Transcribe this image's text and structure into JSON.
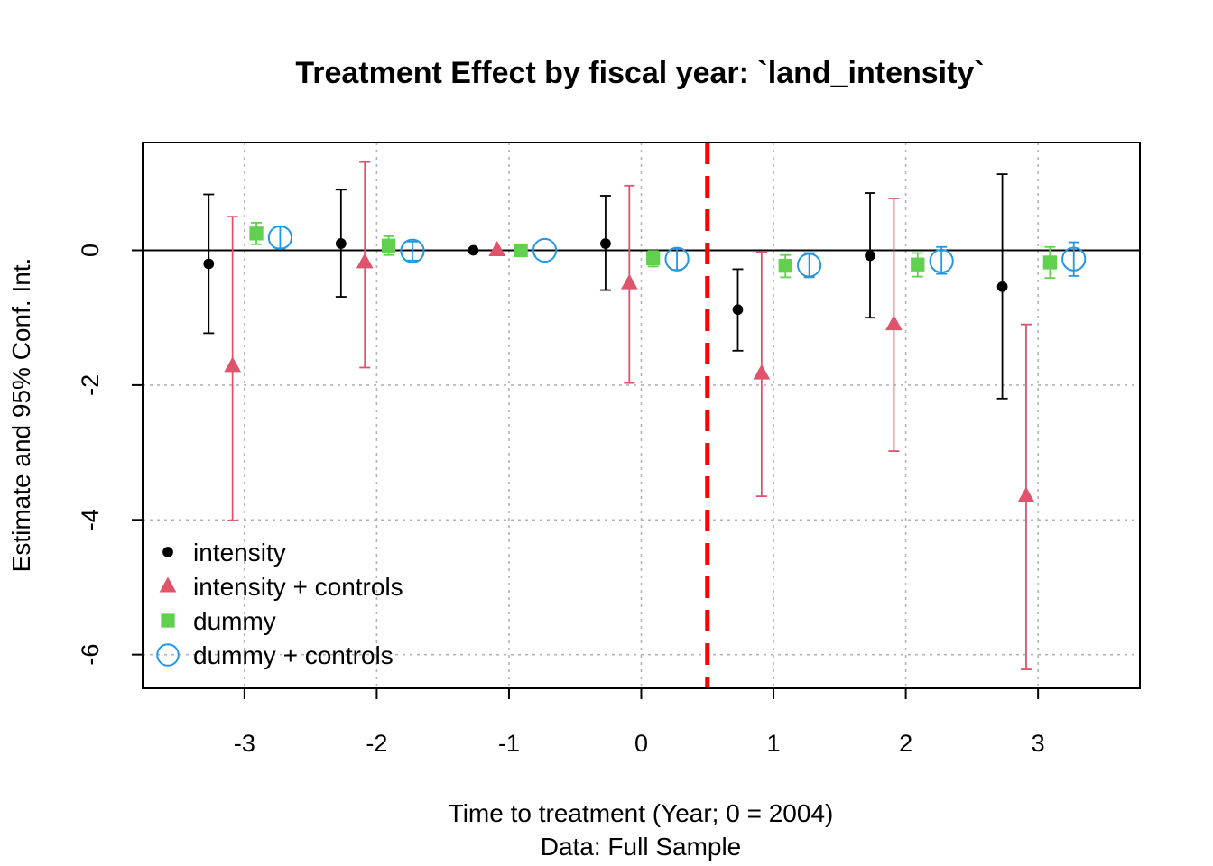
{
  "chart_data": {
    "type": "scatter",
    "title": "Treatment Effect by fiscal year: `land_intensity`",
    "xlabel": "Time to treatment (Year; 0 = 2004)",
    "subtitle": "Data: Full Sample",
    "ylabel": "Estimate and 95% Conf. Int.",
    "xlim": [
      -3.77,
      3.77
    ],
    "ylim": [
      -6.5,
      1.6
    ],
    "x_ticks": [
      -3,
      -2,
      -1,
      0,
      1,
      2,
      3
    ],
    "y_ticks": [
      0,
      -2,
      -4,
      -6
    ],
    "x_tick_labels": [
      "-3",
      "-2",
      "-1",
      "0",
      "1",
      "2",
      "3"
    ],
    "y_tick_labels": [
      "0",
      "-2",
      "-4",
      "-6"
    ],
    "grid": true,
    "reference_line_y": 0,
    "treatment_line_x": 0.5,
    "legend_position": "bottom-left",
    "series": [
      {
        "name": "intensity",
        "color": "#000000",
        "marker": "filled-circle",
        "offset": -0.27,
        "x": [
          -3,
          -2,
          -1,
          0,
          1,
          2,
          3
        ],
        "estimate": [
          -0.2,
          0.1,
          0.0,
          0.1,
          -0.88,
          -0.08,
          -0.54
        ],
        "ci_low": [
          -1.23,
          -0.69,
          null,
          -0.59,
          -1.49,
          -1.0,
          -2.2
        ],
        "ci_high": [
          0.83,
          0.9,
          null,
          0.81,
          -0.28,
          0.85,
          1.13
        ]
      },
      {
        "name": "intensity + controls",
        "color": "#DF536B",
        "marker": "filled-triangle",
        "offset": -0.09,
        "x": [
          -3,
          -2,
          -1,
          0,
          1,
          2,
          3
        ],
        "estimate": [
          -1.72,
          -0.18,
          0.0,
          -0.49,
          -1.83,
          -1.1,
          -3.65
        ],
        "ci_low": [
          -4.01,
          -1.74,
          null,
          -1.97,
          -3.65,
          -2.98,
          -6.22
        ],
        "ci_high": [
          0.5,
          1.31,
          null,
          0.96,
          -0.03,
          0.77,
          -1.1
        ]
      },
      {
        "name": "dummy",
        "color": "#61D04F",
        "marker": "filled-square",
        "offset": 0.09,
        "x": [
          -3,
          -2,
          -1,
          0,
          1,
          2,
          3
        ],
        "estimate": [
          0.25,
          0.07,
          0.0,
          -0.12,
          -0.23,
          -0.21,
          -0.18
        ],
        "ci_low": [
          0.09,
          -0.07,
          null,
          -0.24,
          -0.4,
          -0.39,
          -0.41
        ],
        "ci_high": [
          0.41,
          0.21,
          null,
          -0.01,
          -0.07,
          -0.04,
          0.05
        ]
      },
      {
        "name": "dummy + controls",
        "color": "#2297E6",
        "marker": "open-circle",
        "offset": 0.27,
        "x": [
          -3,
          -2,
          -1,
          0,
          1,
          2,
          3
        ],
        "estimate": [
          0.19,
          -0.01,
          0.0,
          -0.13,
          -0.22,
          -0.16,
          -0.13
        ],
        "ci_low": [
          0.03,
          -0.15,
          null,
          -0.29,
          -0.4,
          -0.35,
          -0.38
        ],
        "ci_high": [
          0.35,
          0.13,
          null,
          0.02,
          -0.04,
          0.05,
          0.12
        ]
      }
    ]
  }
}
